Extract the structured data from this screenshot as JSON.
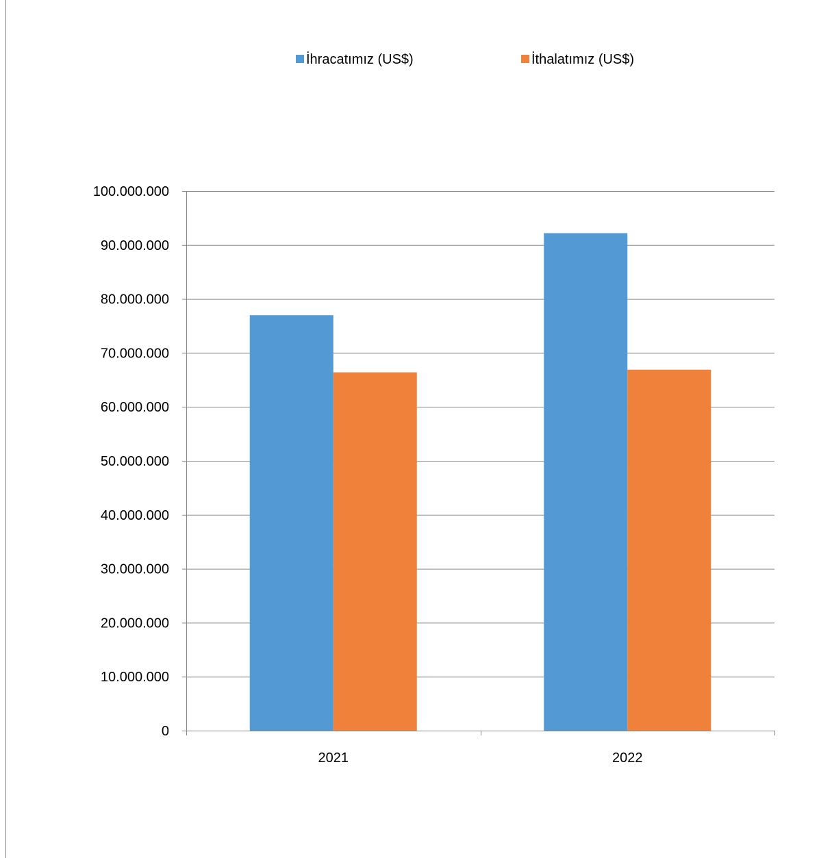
{
  "chart_data": {
    "type": "bar",
    "title": "",
    "xlabel": "",
    "ylabel": "",
    "categories": [
      "2021",
      "2022"
    ],
    "series": [
      {
        "name": "İhracatımız (US$)",
        "color": "#5399d3",
        "values": [
          77000000,
          92200000
        ]
      },
      {
        "name": "İthalatımız (US$)",
        "color": "#f0813a",
        "values": [
          66400000,
          66900000
        ]
      }
    ],
    "ylim": [
      0,
      100000000
    ],
    "yticks": [
      {
        "value": 0,
        "label": "0"
      },
      {
        "value": 10000000,
        "label": "10.000.000"
      },
      {
        "value": 20000000,
        "label": "20.000.000"
      },
      {
        "value": 30000000,
        "label": "30.000.000"
      },
      {
        "value": 40000000,
        "label": "40.000.000"
      },
      {
        "value": 50000000,
        "label": "50.000.000"
      },
      {
        "value": 60000000,
        "label": "60.000.000"
      },
      {
        "value": 70000000,
        "label": "70.000.000"
      },
      {
        "value": 80000000,
        "label": "80.000.000"
      },
      {
        "value": 90000000,
        "label": "90.000.000"
      },
      {
        "value": 100000000,
        "label": "100.000.000"
      }
    ],
    "grid": true,
    "legend_position": "top"
  }
}
